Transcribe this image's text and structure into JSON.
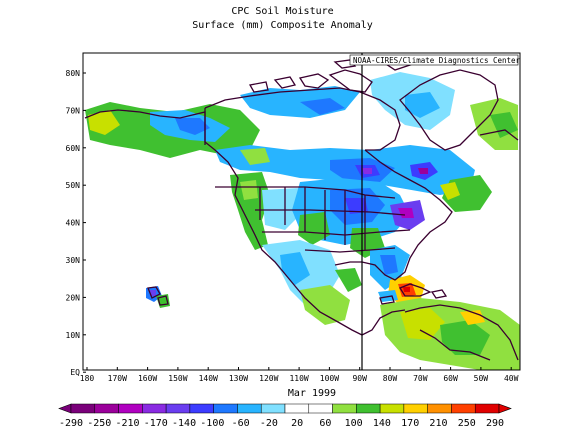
{
  "title": "CPC Soil Moisture",
  "subtitle": "Surface  (mm) Composite Anomaly",
  "credit": "NOAA-CIRES/Climate Diagnostics Center",
  "period": "Mar 1999",
  "lat_labels": [
    "80N",
    "70N",
    "60N",
    "50N",
    "40N",
    "30N",
    "20N",
    "10N",
    "EQ"
  ],
  "lon_labels": [
    "180",
    "170W",
    "160W",
    "150W",
    "140W",
    "130W",
    "120W",
    "110W",
    "100W",
    "90W",
    "80W",
    "70W",
    "60W",
    "50W",
    "40W"
  ],
  "colorbar": {
    "labels": [
      "-290",
      "-250",
      "-210",
      "-170",
      "-140",
      "-100",
      "-60",
      "-20",
      "20",
      "60",
      "100",
      "140",
      "170",
      "210",
      "250",
      "290"
    ],
    "colors": [
      "#7a007a",
      "#9b009b",
      "#b000c0",
      "#8a2be2",
      "#6a3df0",
      "#3c3cff",
      "#1e78ff",
      "#28b4ff",
      "#80e0ff",
      "#ffffff",
      "#ffffff",
      "#90e040",
      "#40c030",
      "#c8e000",
      "#ffd000",
      "#ff9000",
      "#ff4000",
      "#e00000"
    ]
  },
  "colors": {
    "land_outline": "#3a0030",
    "frame": "#000000"
  }
}
